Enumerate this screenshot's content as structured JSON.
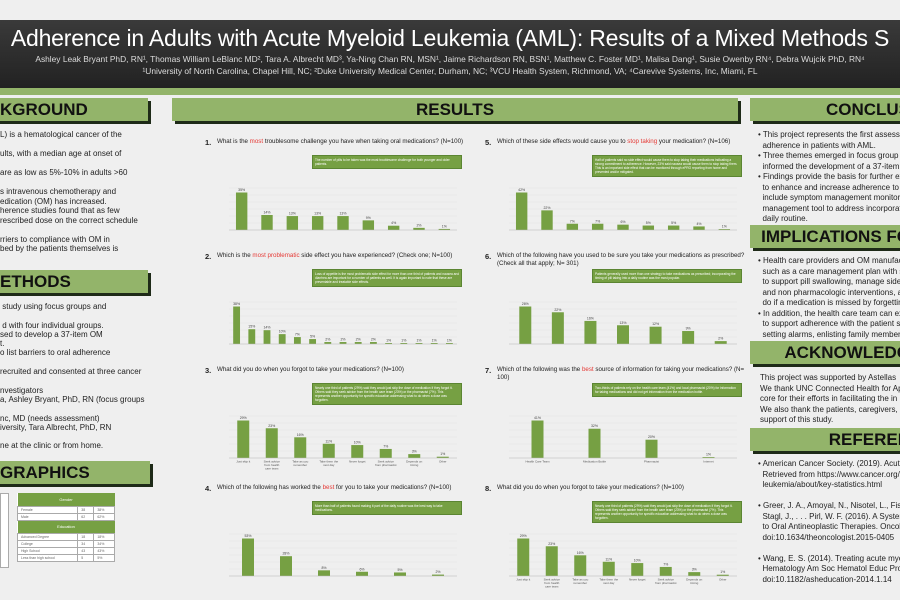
{
  "header": {
    "title": "Adherence in Adults with Acute Myeloid Leukemia (AML): Results of a Mixed Methods S",
    "authors": "Ashley Leak Bryant PhD, RN¹, Thomas William LeBlanc MD², Tara A. Albrecht MD³, Ya-Ning Chan RN, MSN¹, Jaime Richardson RN, BSN¹, Matthew C. Foster MD¹, Malisa Dang¹, Susie Owenby RN⁴, Debra Wujcik PhD, RN⁴",
    "affiliations": "¹University of North Carolina, Chapel Hill, NC; ²Duke University Medical Center, Durham, NC; ³VCU Health System, Richmond, VA; ⁴Carevive Systems, Inc, Miami, FL"
  },
  "background": {
    "heading": "KGROUND",
    "lines": [
      "L) is a hematological cancer of the",
      "",
      "ults, with a median age at onset of",
      "",
      "are as low as 5%-10% in adults >60",
      "",
      "s intravenous chemotherapy and",
      "edication (OM) has increased.",
      "herence studies found that as few",
      "rescribed dose on the correct schedule",
      "",
      "rriers to compliance with OM in",
      "bed by the patients themselves is"
    ]
  },
  "methods": {
    "heading": "ETHODS",
    "lines": [
      " study using focus groups and",
      "",
      " d with four individual groups.",
      "sed to develop a 37-item OM",
      "t.",
      "o list barriers to oral adherence",
      "",
      "recruited and consented at three cancer",
      "",
      "nvestigators",
      "a, Ashley Bryant, PhD, RN (focus groups",
      "",
      "nc, MD (needs assessment)",
      "iversity, Tara Albrecht, PhD, RN",
      "",
      "ne at the clinic or from home."
    ]
  },
  "demographics": {
    "heading": "GRAPHICS",
    "gender": {
      "header": "Gender",
      "rows": [
        [
          "Female",
          "38",
          "38%"
        ],
        [
          "Male",
          "62",
          "62%"
        ]
      ]
    },
    "education": {
      "header": "Education",
      "rows": [
        [
          "Advanced Degree",
          "18",
          "18%"
        ],
        [
          "College",
          "34",
          "34%"
        ],
        [
          "High School",
          "43",
          "43%"
        ],
        [
          "Less than high school",
          "5",
          "5%"
        ]
      ]
    }
  },
  "results": {
    "heading": "RESULTS",
    "questions": [
      {
        "num": "1.",
        "pre": "What is the ",
        "hl": "most",
        "post": " troublesome challenge you have when taking oral medications? (N=100)",
        "values": [
          35,
          14,
          13,
          13,
          13,
          9,
          4,
          2,
          1
        ],
        "note": "The number of pills to be taken was the most troublesome challenge for both younger and older patients."
      },
      {
        "num": "2.",
        "pre": "Which is the ",
        "hl": "most problematic",
        "post": " side effect you have experienced? (Check one; N=100)",
        "values": [
          38,
          15,
          14,
          10,
          7,
          5,
          2,
          2,
          2,
          2,
          1,
          1,
          1,
          1,
          1
        ],
        "note": "Loss of appetite is the most problematic side effect for more than one third of patients and nausea and diarrhea are important for a number of patients as well. It is again important to note that these are preventable and treatable side effects."
      },
      {
        "num": "3.",
        "pre": "What did you do when you forgot to take your medications? (N=100)",
        "hl": "",
        "post": "",
        "values": [
          29,
          23,
          16,
          11,
          10,
          7,
          3,
          1
        ],
        "categories": [
          "Just skip it",
          "Seek advice from health care team",
          "Take as you remember",
          "Take them the next day",
          "Never forget",
          "Seek advice from pharmacist",
          "Depends on timing",
          "Other"
        ],
        "note": "Nearly one third of patients (29%) said they would just skip the dose of medication if they forgot it. Others said they seek advice from the health care team (23%) or the pharmacist (7%). This represents another opportunity for specific education addressing what to do when a dose was forgotten."
      },
      {
        "num": "4.",
        "pre": "Which of the following has worked the ",
        "hl": "best",
        "post": " for you to take your medications? (N=100)",
        "values": [
          53,
          28,
          8,
          6,
          5,
          2
        ],
        "note": "More than half of patients found making it part of the daily routine was the best way to take medications."
      },
      {
        "num": "5.",
        "pre": "Which of these side effects would cause you to ",
        "hl": "stop taking",
        "post": " your medication? (N=106)",
        "values": [
          42,
          22,
          7,
          7,
          6,
          5,
          5,
          4,
          1
        ],
        "note": "Half of patients said no side effect would cause them to stop taking their medications indicating a strong commitment to adherence. However, 23% said nausea would cause them to stop taking them. This is an important side effect that can be monitored through ePRO reporting from home and prevented and/or mitigated."
      },
      {
        "num": "6.",
        "pre": "Which of the following have you used to be sure you take your medications as prescribed? (Check all that apply; N= 301)",
        "hl": "",
        "post": "",
        "values": [
          26,
          22,
          16,
          13,
          12,
          9,
          2
        ],
        "note": "Patients generally used more than one strategy to take medications as prescribed; incorporating the timing of pill taking into a daily routine was the most popular."
      },
      {
        "num": "7.",
        "pre": "Which of the following was the ",
        "hl": "best",
        "post": " source of information for taking your medications? (N= 100)",
        "values": [
          41,
          32,
          20,
          1
        ],
        "categories": [
          "Health Care Team",
          "Medication Bottle",
          "Pharmacist",
          "Internet"
        ],
        "note": "Two-thirds of patients rely on the health care team (41%) and local pharmacist (20%) for information for taking medications and did not get information from the medication bottle."
      },
      {
        "num": "8.",
        "pre": "What did you do when you forgot to take your medications? (N=100)",
        "hl": "",
        "post": "",
        "values": [
          29,
          23,
          16,
          11,
          10,
          7,
          3,
          1
        ],
        "categories": [
          "Just skip it",
          "Seek advice from health care team",
          "Take as you remember",
          "Take them the next day",
          "Never forget",
          "Seek advice from pharmacist",
          "Depends on timing",
          "Other"
        ],
        "note": "Nearly one third of patients (29%) said they would just skip the dose of medication if they forgot it. Others said they seek advice from the health care team (23%) or the pharmacist (7%). This represents another opportunity for specific education addressing what to do when a dose was forgotten."
      }
    ]
  },
  "conclusions": {
    "heading": "CONCLUS",
    "lines": [
      "• This project represents the first assessm",
      "  adherence in patients with AML.",
      "• Three themes emerged in focus group t",
      "  informed the development of a 37-item",
      "• Findings provide the basis for further ex",
      "  to enhance and increase adherence to O",
      "  include symptom management monitor",
      "  management tool to address incorporat",
      "  daily routine."
    ]
  },
  "implications": {
    "heading": "IMPLICATIONS FO",
    "lines": [
      "• Health care providers and OM manufact",
      "  such as a care management plan with s",
      "  to support pill swallowing, manage side",
      "  and non pharmacologic interventions, a",
      "  do if a medication is missed by forgettin",
      "• In addition, the health care team can ex",
      "  to support adherence with the patient s",
      "  setting alarms, enlisting family member"
    ]
  },
  "acknowledgements": {
    "heading": "ACKNOWLEDG",
    "lines": [
      "This project was supported by Astellas",
      "We thank UNC Connected Health for Ap",
      "core for their efforts in facilitating the in",
      "We also thank the patients, caregivers, a",
      "support of this study."
    ]
  },
  "references": {
    "heading": "REFEREN",
    "lines": [
      "• American Cancer Society. (2019). Acute",
      "  Retrieved from https://www.cancer.org/",
      "  leukemia/about/key-statistics.html",
      "",
      "• Greer, J. A., Amoyal, N., Nisotel, L., Fishb",
      "  Stagl, J., . . . Pirl, W. F. (2016). A Systema",
      "  to Oral Antineoplastic Therapies. Oncolo",
      "  doi:10.1634/theoncologist.2015-0405",
      "",
      "• Wang, E. S. (2014). Treating acute myelo",
      "  Hematology Am Soc Hematol Educ Prog",
      "  doi:10.1182/asheducation-2014.1.14"
    ]
  },
  "colors": {
    "accent": "#93b46a",
    "bar": "#76a043",
    "header_bg": "#2b2b2b",
    "highlight": "#e53935"
  }
}
